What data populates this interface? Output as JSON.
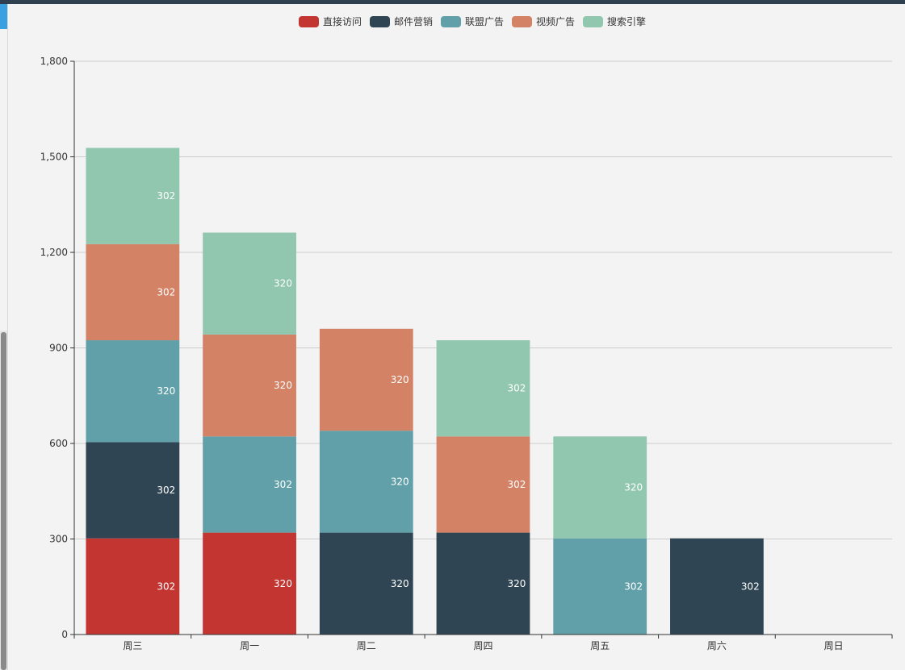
{
  "chart_data": {
    "type": "bar",
    "stacked": true,
    "categories": [
      "周三",
      "周一",
      "周二",
      "周四",
      "周五",
      "周六",
      "周日"
    ],
    "series": [
      {
        "name": "直接访问",
        "color": "#c23531",
        "values": [
          302,
          320,
          null,
          null,
          null,
          null,
          null
        ]
      },
      {
        "name": "邮件营销",
        "color": "#2f4554",
        "values": [
          302,
          null,
          320,
          320,
          null,
          302,
          null
        ]
      },
      {
        "name": "联盟广告",
        "color": "#61a0a8",
        "values": [
          320,
          302,
          320,
          null,
          302,
          null,
          null
        ]
      },
      {
        "name": "视频广告",
        "color": "#d48265",
        "values": [
          302,
          320,
          320,
          302,
          null,
          null,
          null
        ]
      },
      {
        "name": "搜索引擎",
        "color": "#91c7ae",
        "values": [
          302,
          320,
          null,
          302,
          320,
          null,
          null
        ]
      }
    ],
    "ylim": [
      0,
      1800
    ],
    "yticks": [
      0,
      300,
      600,
      900,
      1200,
      1500,
      1800
    ],
    "ytick_labels": [
      "0",
      "300",
      "600",
      "900",
      "1,200",
      "1,500",
      "1,800"
    ],
    "legend_position": "top-center",
    "grid": true,
    "title": "",
    "xlabel": "",
    "ylabel": ""
  }
}
